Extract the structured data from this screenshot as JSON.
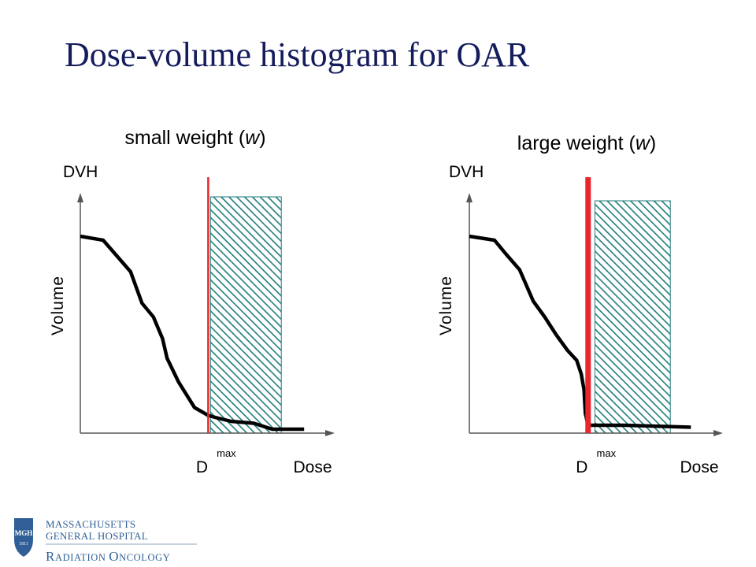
{
  "slide": {
    "title": "Dose-volume histogram for OAR"
  },
  "chart_data": [
    {
      "type": "line",
      "title_prefix": "small weight (",
      "title_var": "w",
      "title_suffix": ")",
      "ylabel_top": "DVH",
      "ylabel": "Volume",
      "xlabel": "Dose",
      "marker_label": "D",
      "marker_sub": "max",
      "series": [
        {
          "x": [
            0.0,
            0.1,
            0.16,
            0.22,
            0.27,
            0.32,
            0.36,
            0.38,
            0.43,
            0.5,
            0.56,
            0.59,
            0.66,
            0.76,
            0.84,
            0.98
          ],
          "y": [
            1.0,
            0.98,
            0.9,
            0.82,
            0.66,
            0.59,
            0.48,
            0.38,
            0.26,
            0.13,
            0.09,
            0.08,
            0.06,
            0.05,
            0.02,
            0.02
          ]
        }
      ],
      "dmax": 0.56,
      "hatched_region": {
        "x": [
          0.57,
          0.88
        ],
        "y": [
          0,
          1.2
        ]
      },
      "marker_emphasis": "thin"
    },
    {
      "type": "line",
      "title_prefix": "large weight (",
      "title_var": "w",
      "title_suffix": ")",
      "ylabel_top": "DVH",
      "ylabel": "Volume",
      "xlabel": "Dose",
      "marker_label": "D",
      "marker_sub": "max",
      "series": [
        {
          "x": [
            0.0,
            0.11,
            0.16,
            0.22,
            0.28,
            0.33,
            0.38,
            0.43,
            0.47,
            0.49,
            0.502,
            0.508,
            0.52,
            0.68,
            0.97
          ],
          "y": [
            1.0,
            0.98,
            0.91,
            0.83,
            0.67,
            0.59,
            0.5,
            0.42,
            0.37,
            0.3,
            0.22,
            0.1,
            0.04,
            0.04,
            0.03
          ]
        }
      ],
      "dmax": 0.52,
      "hatched_region": {
        "x": [
          0.55,
          0.88
        ],
        "y": [
          0,
          1.18
        ]
      },
      "marker_emphasis": "thick"
    }
  ],
  "logo": {
    "line1": "MASSACHUSETTS",
    "line2": "GENERAL HOSPITAL",
    "shield_top": "MGH",
    "shield_year": "1811",
    "dept_cap1": "R",
    "dept_rest1": "ADIATION",
    "dept_cap2": "O",
    "dept_rest2": "NCOLOGY"
  },
  "colors": {
    "title": "#141c5c",
    "curve": "#000000",
    "marker": "#e8262b",
    "hatch_border": "#1f7a78",
    "hatch_line": "#207d7b",
    "logo_blue": "#2f5f96"
  }
}
